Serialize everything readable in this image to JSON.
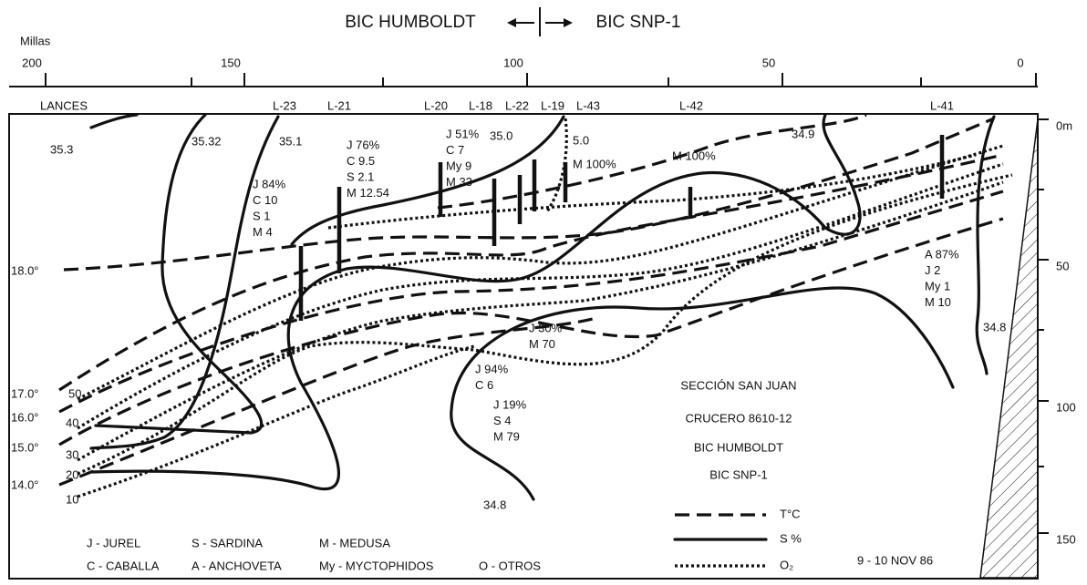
{
  "header": {
    "left": "BIC HUMBOLDT",
    "right": "BIC SNP-1"
  },
  "distance_axis": {
    "unit": "Millas",
    "ticks": [
      "200",
      "150",
      "100",
      "50",
      "0"
    ]
  },
  "depth_axis": {
    "ticks": [
      "0m",
      "50",
      "100",
      "150"
    ]
  },
  "stations": {
    "label": "LANCES",
    "names": [
      "L-23",
      "L-21",
      "L-20",
      "L-18",
      "L-22",
      "L-19",
      "L-43",
      "L-42",
      "L-41"
    ]
  },
  "isoline_labels": {
    "salinity": [
      "35.3",
      "35.32",
      "35.1",
      "35.0",
      "34.9",
      "34.8",
      "34.8"
    ],
    "oxygen_top": [
      "5.0"
    ],
    "temperature": [
      "18.0°",
      "17.0°",
      "16.0°",
      "15.0°",
      "14.0°"
    ],
    "oxygen": [
      "50",
      "40",
      "30",
      "20",
      "10"
    ]
  },
  "catches": [
    [
      "J 84%",
      "C 10",
      "S 1",
      "M 4"
    ],
    [
      "J 76%",
      "C 9.5",
      "S 2.1",
      "M 12.54"
    ],
    [
      "J 51%",
      "C 7",
      "My 9",
      "M 33"
    ],
    [
      "M 100%"
    ],
    [
      "M 100%"
    ],
    [
      "A 87%",
      "J 2",
      "My 1",
      "M 10"
    ],
    [
      "J 30%",
      "M 70"
    ],
    [
      "J 94%",
      "C 6"
    ],
    [
      "J 19%",
      "S 4",
      "M 79"
    ]
  ],
  "info": [
    "SECCIÓN SAN JUAN",
    "CRUCERO 8610-12",
    "BIC  HUMBOLDT",
    "BIC  SNP-1"
  ],
  "legend": [
    "T°C",
    "S %",
    "O₂"
  ],
  "species": [
    "J - JUREL",
    "C - CABALLA",
    "S - SARDINA",
    "A - ANCHOVETA",
    "M - MEDUSA",
    "My - MYCTOPHIDOS",
    "O - OTROS"
  ],
  "date": "9 - 10 NOV 86"
}
